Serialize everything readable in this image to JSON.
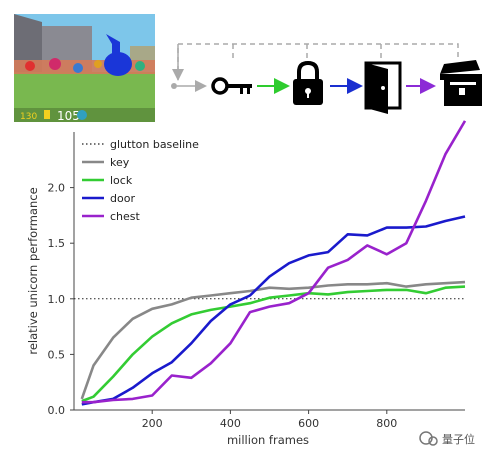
{
  "game_screenshot": {
    "ammo_text": "130",
    "score_text": "105",
    "colors": {
      "sky": "#7dc6ea",
      "floor": "#79b84f",
      "wall": "#6d6d75",
      "unicorn": "#1a36d8"
    }
  },
  "sequence": {
    "items": [
      {
        "name": "key",
        "icon": "key-icon",
        "arrow_color": "#2ecc2e"
      },
      {
        "name": "lock",
        "icon": "lock-icon",
        "arrow_color": "#1a2fd0"
      },
      {
        "name": "door",
        "icon": "door-icon",
        "arrow_color": "#8c2bd6"
      },
      {
        "name": "chest",
        "icon": "chest-icon",
        "arrow_color": "#8c2bd6"
      }
    ],
    "feedback_color": "#aaaaaa"
  },
  "chart_data": {
    "type": "line",
    "xlabel": "million frames",
    "ylabel": "relative unicorn performance",
    "xlim": [
      0,
      1000
    ],
    "ylim": [
      0,
      2.5
    ],
    "xticks": [
      200,
      400,
      600,
      800
    ],
    "yticks": [
      0.0,
      0.5,
      1.0,
      1.5,
      2.0
    ],
    "xtick_labels": [
      "200",
      "400",
      "600",
      "800"
    ],
    "ytick_labels": [
      "0.0",
      "0.5",
      "1.0",
      "1.5",
      "2.0"
    ],
    "baseline": {
      "name": "glutton baseline",
      "value": 1.0,
      "color": "#222222",
      "style": "dotted"
    },
    "legend_position": "top-left",
    "grid": false,
    "series": [
      {
        "name": "key",
        "color": "#888888",
        "x": [
          20,
          50,
          100,
          150,
          200,
          250,
          300,
          350,
          400,
          450,
          500,
          550,
          600,
          650,
          700,
          750,
          800,
          850,
          900,
          950,
          1000
        ],
        "y": [
          0.1,
          0.4,
          0.65,
          0.82,
          0.91,
          0.95,
          1.01,
          1.03,
          1.05,
          1.07,
          1.1,
          1.09,
          1.1,
          1.12,
          1.13,
          1.13,
          1.14,
          1.11,
          1.13,
          1.14,
          1.15
        ]
      },
      {
        "name": "lock",
        "color": "#33cc33",
        "x": [
          20,
          50,
          100,
          150,
          200,
          250,
          300,
          350,
          400,
          450,
          500,
          550,
          600,
          650,
          700,
          750,
          800,
          850,
          900,
          950,
          1000
        ],
        "y": [
          0.08,
          0.12,
          0.3,
          0.5,
          0.66,
          0.78,
          0.86,
          0.9,
          0.93,
          0.96,
          1.01,
          1.03,
          1.05,
          1.04,
          1.06,
          1.07,
          1.08,
          1.08,
          1.05,
          1.1,
          1.11
        ]
      },
      {
        "name": "door",
        "color": "#1a1acc",
        "x": [
          20,
          50,
          100,
          150,
          200,
          250,
          300,
          350,
          400,
          450,
          500,
          550,
          600,
          650,
          700,
          750,
          800,
          850,
          900,
          950,
          1000
        ],
        "y": [
          0.05,
          0.07,
          0.1,
          0.2,
          0.33,
          0.43,
          0.6,
          0.8,
          0.95,
          1.03,
          1.2,
          1.32,
          1.39,
          1.42,
          1.58,
          1.57,
          1.64,
          1.64,
          1.65,
          1.7,
          1.74
        ]
      },
      {
        "name": "chest",
        "color": "#9922cc",
        "x": [
          20,
          50,
          100,
          150,
          200,
          250,
          300,
          350,
          400,
          450,
          500,
          550,
          600,
          650,
          700,
          750,
          800,
          850,
          900,
          950,
          1000
        ],
        "y": [
          0.07,
          0.07,
          0.09,
          0.1,
          0.13,
          0.31,
          0.29,
          0.42,
          0.6,
          0.88,
          0.93,
          0.96,
          1.05,
          1.28,
          1.35,
          1.48,
          1.4,
          1.5,
          1.88,
          2.3,
          2.6
        ]
      }
    ]
  },
  "watermark": {
    "text": "量子位"
  }
}
